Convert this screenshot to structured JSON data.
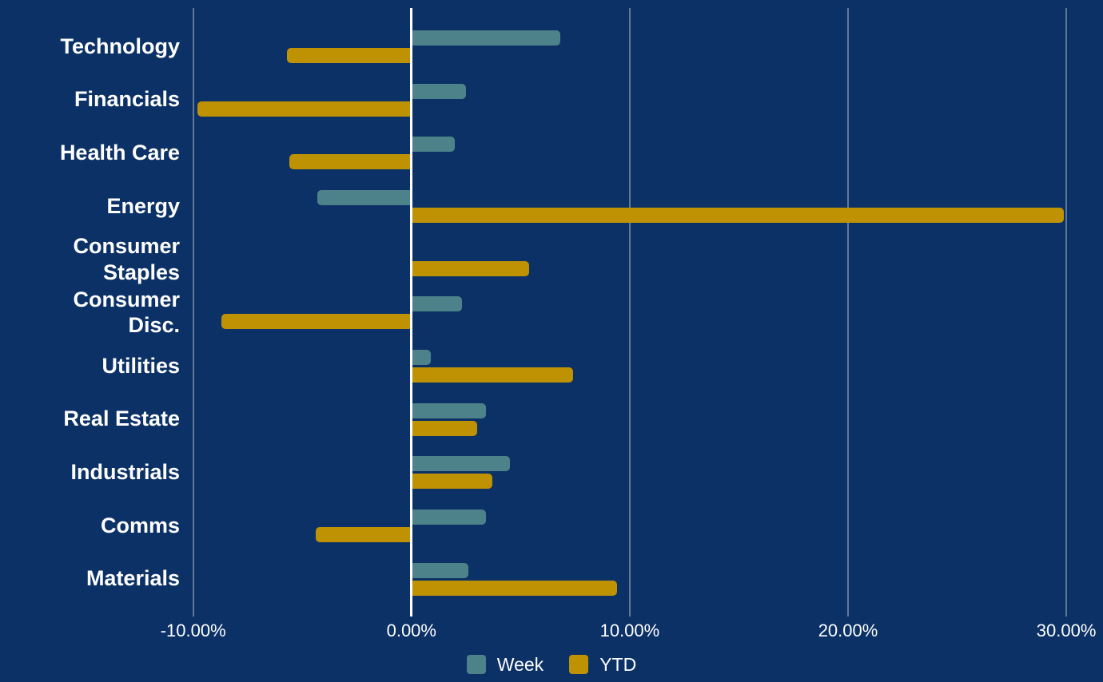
{
  "chart_data": {
    "type": "bar",
    "orientation": "horizontal",
    "title": "",
    "categories": [
      "Technology",
      "Financials",
      "Health Care",
      "Energy",
      "Consumer Staples",
      "Consumer Disc.",
      "Utilities",
      "Real Estate",
      "Industrials",
      "Comms",
      "Materials"
    ],
    "label_lines": [
      [
        "Technology"
      ],
      [
        "Financials"
      ],
      [
        "Health Care"
      ],
      [
        "Energy"
      ],
      [
        "Consumer",
        "Staples"
      ],
      [
        "Consumer",
        "Disc."
      ],
      [
        "Utilities"
      ],
      [
        "Real Estate"
      ],
      [
        "Industrials"
      ],
      [
        "Comms"
      ],
      [
        "Materials"
      ]
    ],
    "series": [
      {
        "name": "Week",
        "color": "#4e828a",
        "values": [
          6.8,
          2.5,
          2.0,
          -4.3,
          0.0,
          2.3,
          0.9,
          3.4,
          4.5,
          3.4,
          2.6
        ]
      },
      {
        "name": "YTD",
        "color": "#bf9204",
        "values": [
          -5.7,
          -9.8,
          -5.6,
          29.9,
          5.4,
          -8.7,
          7.4,
          3.0,
          3.7,
          -4.4,
          9.4
        ]
      }
    ],
    "value_unit": "%",
    "x_tick_labels": [
      "-10.00%",
      "0.00%",
      "10.00%",
      "20.00%",
      "30.00%"
    ],
    "x_tick_values": [
      -10,
      0,
      10,
      20,
      30
    ],
    "xlim": [
      -18.8,
      31.7
    ],
    "grid": "vertical",
    "zero_line": true,
    "legend_position": "bottom"
  },
  "colors": {
    "background": "#0b3166",
    "week_bar": "#4e828a",
    "ytd_bar": "#bf9204",
    "text": "#ffffff",
    "gridline": "rgba(255,255,255,0.35)",
    "zero_line": "#ffffff"
  }
}
